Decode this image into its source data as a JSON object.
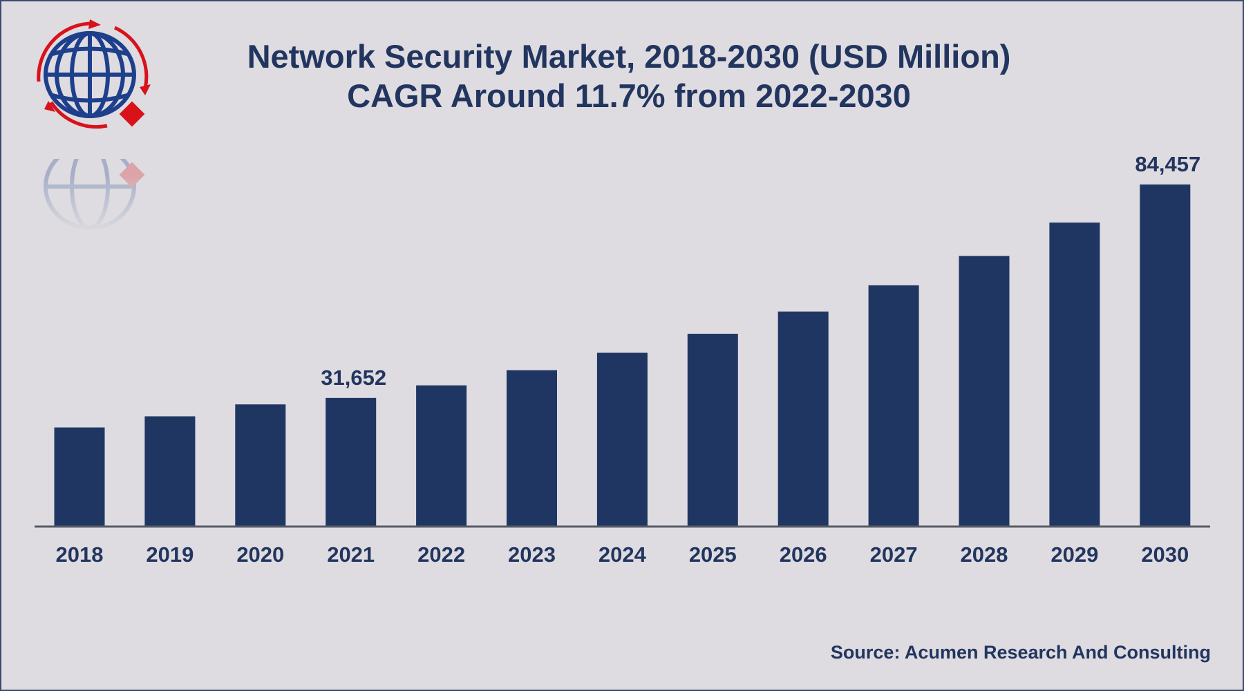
{
  "chart_data": {
    "type": "bar",
    "title": "Network Security Market, 2018-2030 (USD Million)",
    "subtitle": "CAGR Around 11.7% from 2022-2030",
    "categories": [
      "2018",
      "2019",
      "2020",
      "2021",
      "2022",
      "2023",
      "2024",
      "2025",
      "2026",
      "2027",
      "2028",
      "2029",
      "2030"
    ],
    "values": [
      24350,
      27100,
      30050,
      31652,
      34760,
      38500,
      42820,
      47530,
      53030,
      59510,
      66780,
      75030,
      84457
    ],
    "data_labels": {
      "2021": "31,652",
      "2030": "84,457"
    },
    "xlabel": "",
    "ylabel": "",
    "ylim": [
      0,
      84457
    ],
    "grid": false,
    "bar_color": "#1f3662"
  },
  "source": "Source: Acumen Research And Consulting"
}
